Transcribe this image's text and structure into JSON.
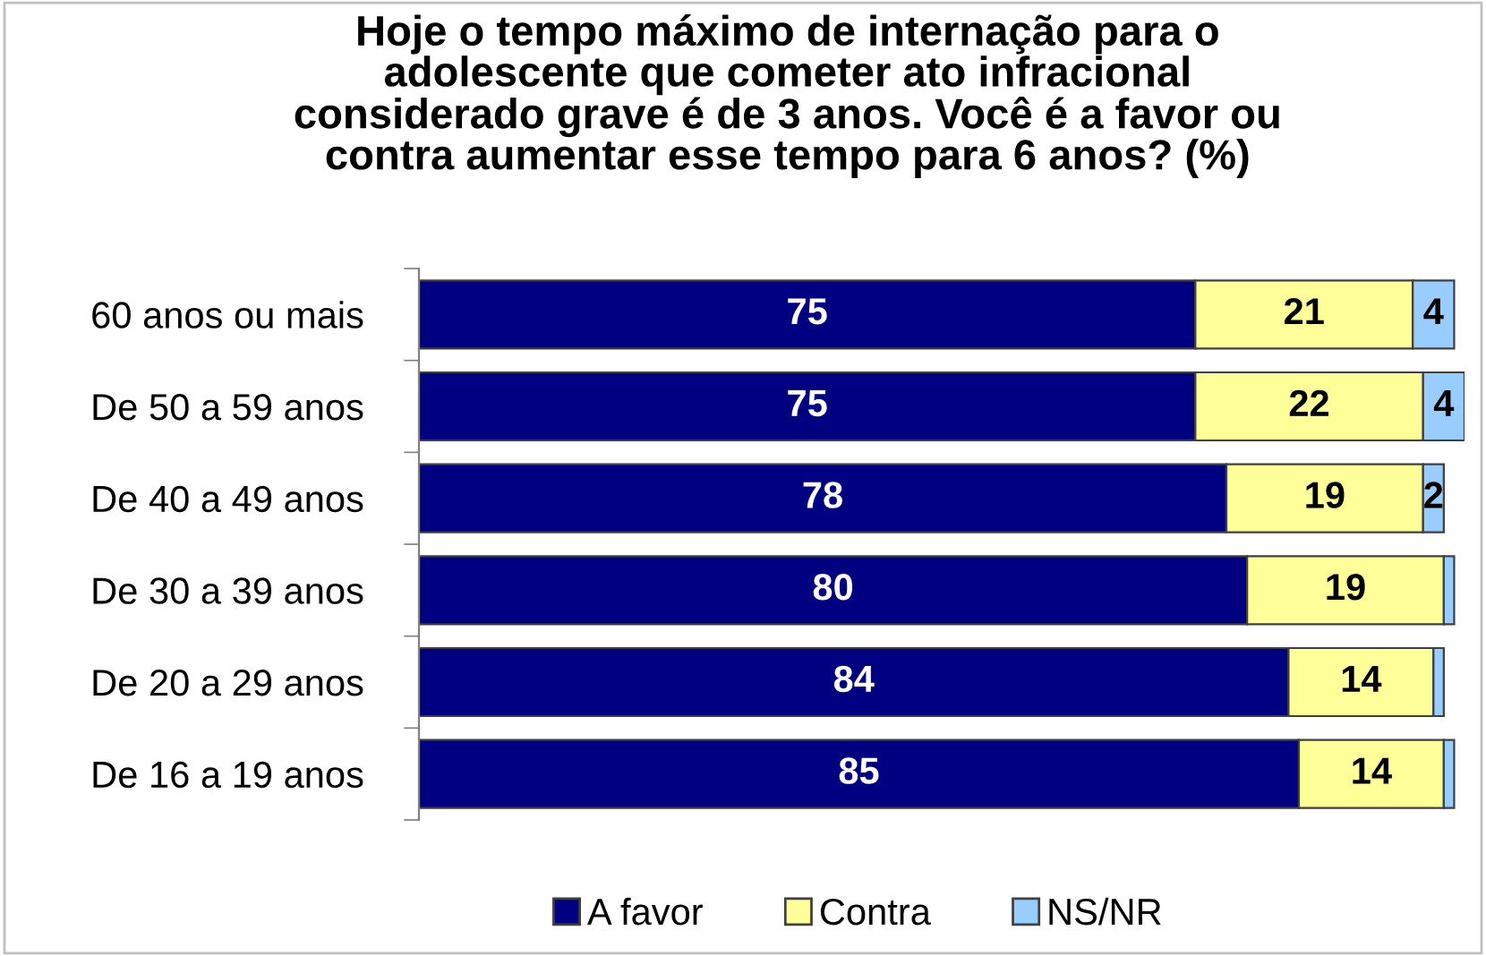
{
  "chart_data": {
    "type": "bar",
    "orientation": "horizontal",
    "stacked": true,
    "title": "Hoje o tempo máximo de internação para o\nadolescente que cometer ato infracional\nconsiderado grave é de 3 anos. Você é a favor ou\ncontra aumentar esse tempo para 6 anos? (%)",
    "categories": [
      "60 anos ou mais",
      "De 50 a 59 anos",
      "De 40 a 49 anos",
      "De 30 a 39 anos",
      "De 20 a 29 anos",
      "De 16 a 19 anos"
    ],
    "series": [
      {
        "name": "A favor",
        "color": "#000080",
        "values": [
          75,
          75,
          78,
          80,
          84,
          85
        ],
        "value_labels": [
          "75",
          "75",
          "78",
          "80",
          "84",
          "85"
        ]
      },
      {
        "name": "Contra",
        "color": "#ffff99",
        "values": [
          21,
          22,
          19,
          19,
          14,
          14
        ],
        "value_labels": [
          "21",
          "22",
          "19",
          "19",
          "14",
          "14"
        ]
      },
      {
        "name": "NS/NR",
        "color": "#99ccff",
        "values": [
          4,
          4,
          2,
          1,
          1,
          1
        ],
        "value_labels": [
          "4",
          "4",
          "2",
          null,
          null,
          null
        ]
      }
    ],
    "xlim": [
      0,
      101
    ],
    "tick_labels": "y",
    "legend": "bottom",
    "grid": false
  }
}
